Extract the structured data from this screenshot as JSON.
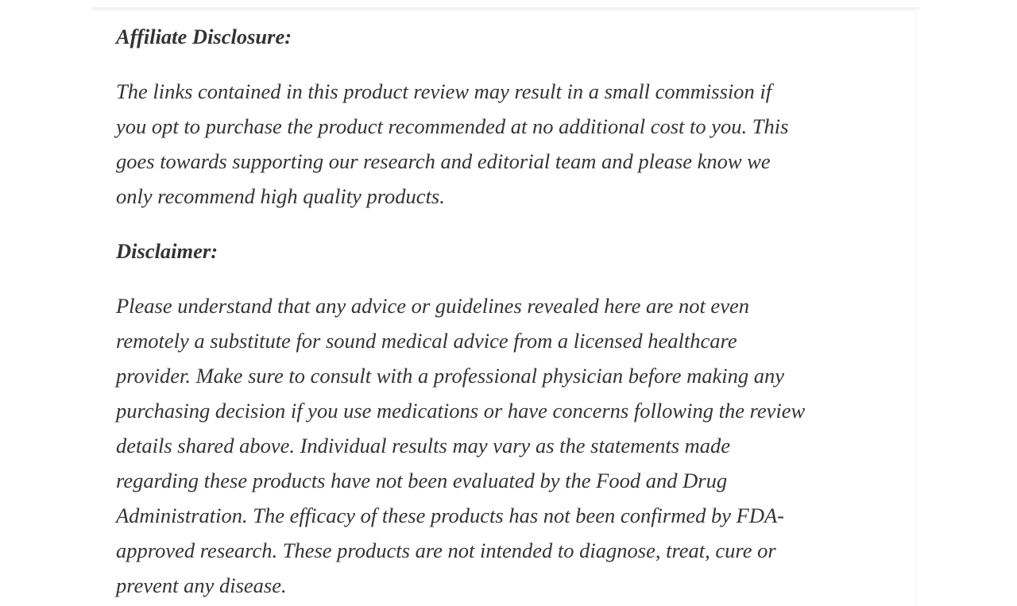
{
  "page": {
    "background": "#ffffff",
    "text_color": "#333333",
    "accent_rule_color": "#f3f3f3"
  },
  "article": {
    "sections": [
      {
        "type": "heading",
        "text": "Affiliate Disclosure:"
      },
      {
        "type": "paragraph",
        "lines": [
          "The links contained in this product review may result in a small commission if",
          "you opt to purchase the product recommended at no additional cost to you. This",
          "goes towards supporting our research and editorial team and please know we",
          "only recommend high quality products."
        ]
      },
      {
        "type": "heading",
        "text": "Disclaimer:"
      },
      {
        "type": "paragraph",
        "lines": [
          "Please understand that any advice or guidelines revealed here are not even",
          "remotely a substitute for sound medical advice from a licensed healthcare",
          "provider. Make sure to consult with a professional physician before making any",
          "purchasing decision if you use medications or have concerns following the review",
          "details shared above. Individual results may vary as the statements made",
          "regarding these products have not been evaluated by the Food and Drug",
          "Administration. The efficacy of these products has not been confirmed by FDA-",
          "approved research. These products are not intended to diagnose, treat, cure or",
          "prevent any disease."
        ]
      }
    ]
  }
}
